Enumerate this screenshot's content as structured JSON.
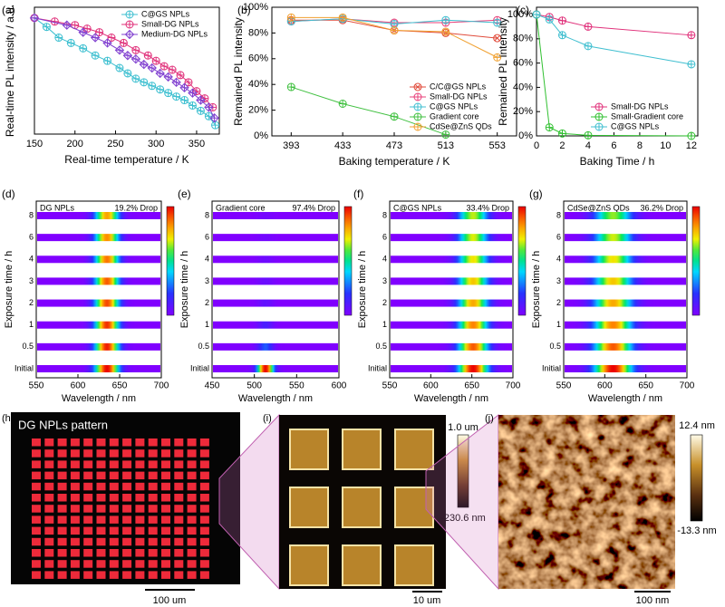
{
  "chart_data": [
    {
      "label": "(a)",
      "type": "line",
      "xlabel": "Real-time temperature / K",
      "ylabel": "Real-time PL intensity / a.u.",
      "xlim": [
        150,
        378
      ],
      "xticks": [
        150,
        200,
        250,
        300,
        350
      ],
      "ylim": [
        0.35,
        1.06
      ],
      "legend": "upper right",
      "series": [
        {
          "name": "C@GS NPLs",
          "color": "#3cbfd0",
          "marker": "circle-plus",
          "x": [
            150,
            165,
            180,
            195,
            210,
            225,
            240,
            255,
            265,
            275,
            285,
            295,
            305,
            315,
            325,
            335,
            345,
            355,
            365,
            373
          ],
          "values": [
            1.0,
            0.95,
            0.89,
            0.86,
            0.83,
            0.79,
            0.76,
            0.72,
            0.69,
            0.66,
            0.64,
            0.62,
            0.6,
            0.58,
            0.56,
            0.54,
            0.51,
            0.48,
            0.45,
            0.4
          ]
        },
        {
          "name": "Small-DG NPLs",
          "color": "#e0307a",
          "marker": "circle-plus",
          "x": [
            150,
            175,
            200,
            215,
            230,
            245,
            260,
            275,
            290,
            300,
            310,
            320,
            330,
            340,
            350,
            360,
            370
          ],
          "values": [
            1.0,
            0.98,
            0.96,
            0.94,
            0.92,
            0.89,
            0.86,
            0.82,
            0.79,
            0.76,
            0.73,
            0.71,
            0.68,
            0.64,
            0.59,
            0.55,
            0.5
          ]
        },
        {
          "name": "Medium-DG NPLs",
          "color": "#8040d0",
          "marker": "diamond-plus",
          "x": [
            150,
            190,
            210,
            225,
            240,
            255,
            265,
            275,
            285,
            295,
            305,
            315,
            325,
            335,
            345,
            355,
            365,
            372
          ],
          "values": [
            1.0,
            0.96,
            0.92,
            0.89,
            0.86,
            0.82,
            0.79,
            0.77,
            0.74,
            0.72,
            0.69,
            0.67,
            0.64,
            0.61,
            0.58,
            0.54,
            0.5,
            0.44
          ]
        }
      ]
    },
    {
      "label": "(b)",
      "type": "line",
      "xlabel": "Baking temperature / K",
      "ylabel": "Remained PL intensity",
      "xlim": [
        378,
        568
      ],
      "xticks": [
        393,
        433,
        473,
        513,
        553
      ],
      "ylim": [
        0,
        100
      ],
      "yticks": [
        {
          "value": 0,
          "label": "0%"
        },
        {
          "value": 20,
          "label": "20%"
        },
        {
          "value": 40,
          "label": "40%"
        },
        {
          "value": 60,
          "label": "60%"
        },
        {
          "value": 80,
          "label": "80%"
        },
        {
          "value": 100,
          "label": "100%"
        }
      ],
      "legend": "lower right",
      "series": [
        {
          "name": "C/C@GS NPLs",
          "color": "#e04a3a",
          "marker": "circle-x",
          "x": [
            393,
            433,
            473,
            513,
            553
          ],
          "values": [
            90,
            90,
            82,
            80,
            76
          ]
        },
        {
          "name": "Small-DG NPLs",
          "color": "#e8407a",
          "marker": "circle-plus",
          "x": [
            393,
            433,
            473,
            513,
            553
          ],
          "values": [
            89,
            91,
            88,
            88,
            90
          ]
        },
        {
          "name": "C@GS NPLs",
          "color": "#40bfd0",
          "marker": "circle-plus",
          "x": [
            393,
            433,
            473,
            513,
            553
          ],
          "values": [
            89,
            91,
            87,
            90,
            88
          ]
        },
        {
          "name": "Gradient core",
          "color": "#40c040",
          "marker": "circle-plus",
          "x": [
            393,
            433,
            473,
            513,
            553
          ],
          "values": [
            38,
            25,
            15,
            1,
            null
          ]
        },
        {
          "name": "CdSe@ZnS QDs",
          "color": "#f0a030",
          "marker": "circle-plus",
          "x": [
            393,
            433,
            473,
            513,
            553
          ],
          "values": [
            92,
            92,
            82,
            81,
            61
          ]
        }
      ]
    },
    {
      "label": "(c)",
      "type": "line",
      "xlabel": "Baking Time / h",
      "ylabel": "Remained PL intensity",
      "xlim": [
        0,
        12.5
      ],
      "xticks": [
        0,
        2,
        4,
        6,
        8,
        10,
        12
      ],
      "ylim": [
        0,
        106
      ],
      "yticks": [
        {
          "value": 0,
          "label": "0%"
        },
        {
          "value": 20,
          "label": "20%"
        },
        {
          "value": 40,
          "label": "40%"
        },
        {
          "value": 60,
          "label": "60%"
        },
        {
          "value": 80,
          "label": "80%"
        },
        {
          "value": 100,
          "label": "100%"
        }
      ],
      "legend": "lower right",
      "series": [
        {
          "name": "Small-DG NPLs",
          "color": "#e0307a",
          "marker": "circle-plus",
          "x": [
            0,
            1,
            2,
            4,
            12
          ],
          "values": [
            100,
            98,
            95,
            90,
            83
          ]
        },
        {
          "name": "Small-Gradient core",
          "color": "#30c030",
          "marker": "circle-plus",
          "x": [
            0,
            1,
            2,
            4,
            12
          ],
          "values": [
            100,
            7,
            2,
            0.5,
            0
          ]
        },
        {
          "name": "C@GS NPLs",
          "color": "#40bfd0",
          "marker": "circle-plus",
          "x": [
            0,
            1,
            2,
            4,
            12
          ],
          "values": [
            100,
            96,
            83,
            74,
            59
          ]
        }
      ]
    },
    {
      "label": "(d)",
      "type": "heatmap",
      "title": "DG NPLs",
      "note": "19.2% Drop",
      "xlabel": "Wavelength / nm",
      "ylabel": "Exposure time / h",
      "xlim": [
        550,
        700
      ],
      "xticks": [
        550,
        600,
        650,
        700
      ],
      "rows": [
        "Initial",
        "0.5",
        "1",
        "2",
        "3",
        "4",
        "6",
        "8"
      ],
      "peak": 635,
      "fwhm": 24,
      "values": [
        1.0,
        0.97,
        0.95,
        0.92,
        0.9,
        0.87,
        0.84,
        0.81
      ]
    },
    {
      "label": "(e)",
      "type": "heatmap",
      "title": "Gradient core",
      "note": "97.4% Drop",
      "xlabel": "Wavelength / nm",
      "ylabel": "Exposure time / h",
      "xlim": [
        450,
        600
      ],
      "xticks": [
        450,
        500,
        550,
        600
      ],
      "rows": [
        "Initial",
        "0.5",
        "1",
        "2",
        "3",
        "4",
        "6",
        "8"
      ],
      "peak": 513,
      "fwhm": 16,
      "values": [
        1.0,
        0.25,
        0.12,
        0.07,
        0.05,
        0.04,
        0.03,
        0.026
      ]
    },
    {
      "label": "(f)",
      "type": "heatmap",
      "title": "C@GS NPLs",
      "note": "33.4% Drop",
      "xlabel": "Wavelength / nm",
      "ylabel": "Exposure time / h",
      "xlim": [
        550,
        700
      ],
      "xticks": [
        550,
        600,
        650,
        700
      ],
      "rows": [
        "Initial",
        "0.5",
        "1",
        "2",
        "3",
        "4",
        "6",
        "8"
      ],
      "peak": 652,
      "fwhm": 30,
      "values": [
        1.0,
        0.9,
        0.85,
        0.8,
        0.76,
        0.72,
        0.69,
        0.67
      ]
    },
    {
      "label": "(g)",
      "type": "heatmap",
      "title": "CdSe@ZnS QDs",
      "note": "36.2% Drop",
      "xlabel": "Wavelength / nm",
      "ylabel": "Exposure time / h",
      "xlim": [
        550,
        700
      ],
      "xticks": [
        550,
        600,
        650,
        700
      ],
      "rows": [
        "Initial",
        "0.5",
        "1",
        "2",
        "3",
        "4",
        "6",
        "8"
      ],
      "peak": 610,
      "fwhm": 38,
      "values": [
        1.0,
        0.9,
        0.85,
        0.8,
        0.76,
        0.72,
        0.68,
        0.64
      ]
    }
  ],
  "images": [
    {
      "label": "(h)",
      "title": "DG NPLs pattern",
      "scale_bar": "100 um"
    },
    {
      "label": "(i)",
      "colorbar": [
        "1.0 um",
        "-230.6 nm"
      ],
      "scale_bar": "10 um"
    },
    {
      "label": "(j)",
      "colorbar": [
        "12.4 nm",
        "-13.3 nm"
      ],
      "scale_bar": "100 nm"
    }
  ]
}
